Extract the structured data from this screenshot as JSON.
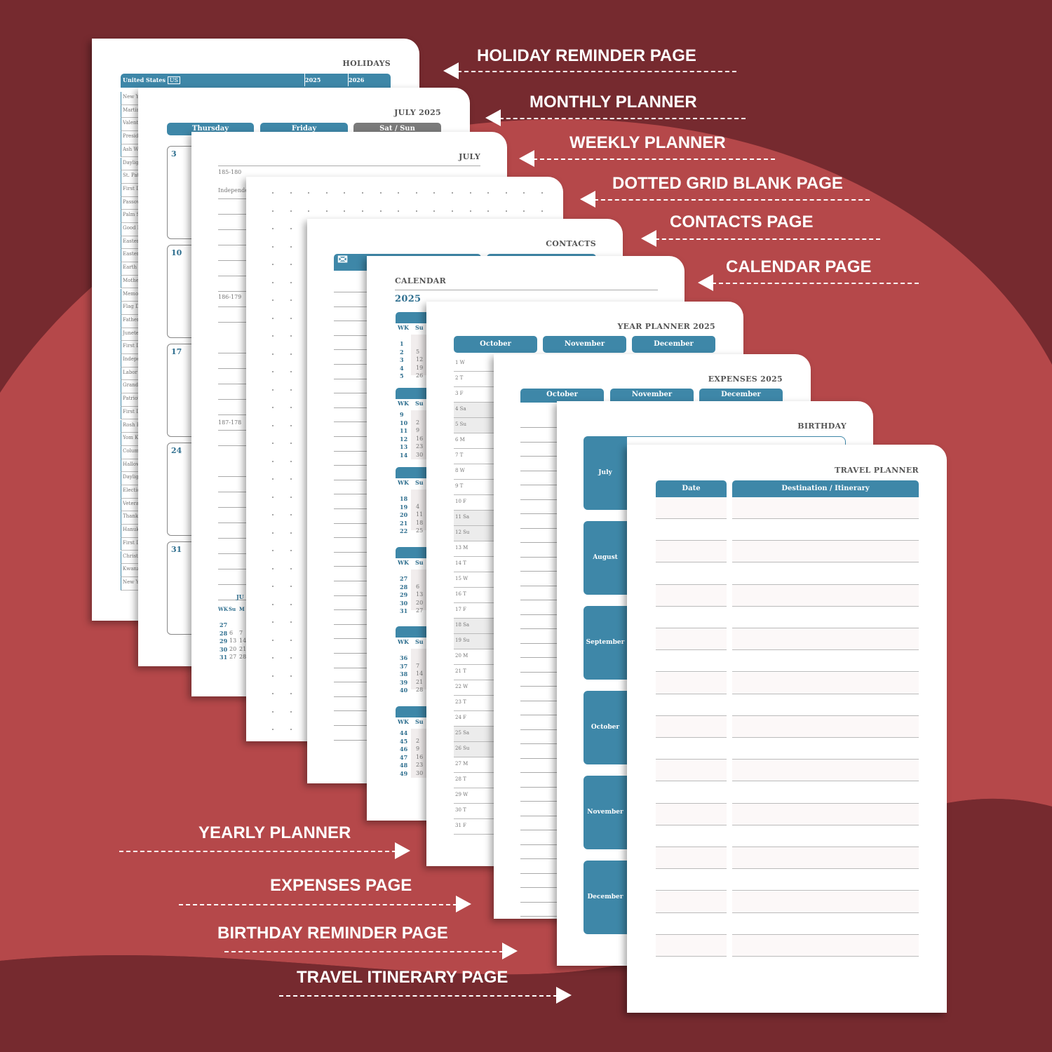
{
  "colors": {
    "background": "#762a2f",
    "wave": "#b5484a",
    "accent": "#3e87a8",
    "label": "#ffffff"
  },
  "labels_right": [
    "HOLIDAY REMINDER PAGE",
    "MONTHLY PLANNER",
    "WEEKLY PLANNER",
    "DOTTED GRID BLANK PAGE",
    "CONTACTS PAGE",
    "CALENDAR PAGE"
  ],
  "labels_left": [
    "YEARLY PLANNER",
    "EXPENSES PAGE",
    "BIRTHDAY REMINDER PAGE",
    "TRAVEL ITINERARY PAGE"
  ],
  "holidays": {
    "title": "HOLIDAYS",
    "country": "United States",
    "country_code": "US",
    "years": [
      "2025",
      "2026"
    ],
    "rows": [
      "New Ye",
      "Martin",
      "Valenti",
      "Preside",
      "Ash We",
      "Dayligh",
      "St. Pat",
      "First D",
      "Passov",
      "Palm Su",
      "Good F",
      "Easter",
      "Easter",
      "Earth D",
      "Mother",
      "Memor",
      "Flag D",
      "Father",
      "Junete",
      "First D",
      "Indepe",
      "Labor",
      "Grandp",
      "Patriot",
      "First D",
      "Rosh H",
      "Yom K",
      "Colum",
      "Hallow",
      "Dayligh",
      "Electio",
      "Veteran",
      "Thanks",
      "Hanuk",
      "First D",
      "Christ",
      "Kwanz",
      "New Ye"
    ]
  },
  "monthly": {
    "title": "JULY 2025",
    "headers": [
      "Thursday",
      "Friday",
      "Sat / Sun"
    ],
    "days": [
      "3",
      "10",
      "17",
      "24",
      "31"
    ]
  },
  "weekly": {
    "title": "JULY",
    "entries": [
      "185-180",
      "Independen",
      "186-179",
      "187-178"
    ],
    "mini": {
      "title": "JU",
      "cols": [
        "WK",
        "Su",
        "M"
      ],
      "rows": [
        [
          "27",
          "",
          ""
        ],
        [
          "28",
          "6",
          "7"
        ],
        [
          "29",
          "13",
          "14"
        ],
        [
          "30",
          "20",
          "21"
        ],
        [
          "31",
          "27",
          "28"
        ]
      ]
    }
  },
  "contacts": {
    "title": "CONTACTS",
    "icon": "envelope-icon"
  },
  "calendar": {
    "title": "CALENDAR",
    "year": "2025",
    "cols": [
      "WK",
      "Su"
    ],
    "blocks": [
      {
        "wk": [
          "1",
          "2",
          "3",
          "4",
          "5"
        ],
        "su": [
          "",
          "5",
          "12",
          "19",
          "26"
        ]
      },
      {
        "wk": [
          "9",
          "10",
          "11",
          "12",
          "13",
          "14"
        ],
        "su": [
          "",
          "2",
          "9",
          "16",
          "23",
          "30"
        ]
      },
      {
        "wk": [
          "18",
          "19",
          "20",
          "21",
          "22"
        ],
        "su": [
          "",
          "4",
          "11",
          "18",
          "25"
        ]
      },
      {
        "wk": [
          "27",
          "28",
          "29",
          "30",
          "31"
        ],
        "su": [
          "",
          "6",
          "13",
          "20",
          "27"
        ]
      },
      {
        "wk": [
          "36",
          "37",
          "38",
          "39",
          "40"
        ],
        "su": [
          "",
          "7",
          "14",
          "21",
          "28"
        ]
      },
      {
        "wk": [
          "44",
          "45",
          "46",
          "47",
          "48",
          "49"
        ],
        "su": [
          "",
          "2",
          "9",
          "16",
          "23",
          "30"
        ]
      }
    ]
  },
  "year_planner": {
    "title": "YEAR PLANNER 2025",
    "months": [
      "October",
      "November",
      "December"
    ],
    "days": [
      "1 W",
      "2 T",
      "3 F",
      "4 Sa",
      "5 Su",
      "6 M",
      "7 T",
      "8 W",
      "9 T",
      "10 F",
      "11 Sa",
      "12 Su",
      "13 M",
      "14 T",
      "15 W",
      "16 T",
      "17 F",
      "18 Sa",
      "19 Su",
      "20 M",
      "21 T",
      "22 W",
      "23 T",
      "24 F",
      "25 Sa",
      "26 Su",
      "27 M",
      "28 T",
      "29 W",
      "30 T",
      "31 F"
    ]
  },
  "expenses": {
    "title": "EXPENSES 2025",
    "months": [
      "October",
      "November",
      "December"
    ]
  },
  "birthday": {
    "title": "BIRTHDAY",
    "months": [
      "July",
      "August",
      "September",
      "October",
      "November",
      "December"
    ]
  },
  "travel": {
    "title": "TRAVEL PLANNER",
    "headers": [
      "Date",
      "Destination / Itinerary"
    ]
  }
}
